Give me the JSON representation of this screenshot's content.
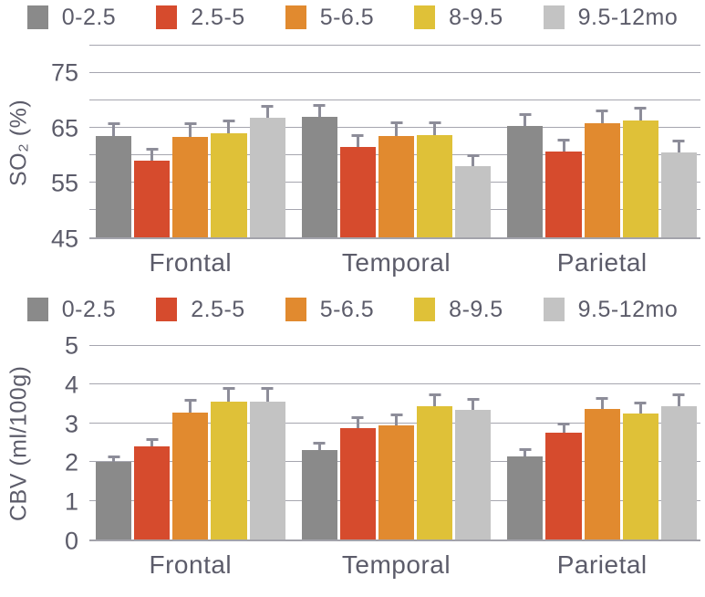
{
  "colors": {
    "series_0_2_5": "#8a8a8a",
    "series_2_5_5": "#d64b2d",
    "series_5_6_5": "#e18a2f",
    "series_8_9_5": "#dfc138",
    "series_9_5_12": "#c3c3c3",
    "text": "#5c5c6a",
    "gridline": "#a6a6af",
    "error_bar": "#8d8d99",
    "background": "#ffffff"
  },
  "chart_data": [
    {
      "type": "bar",
      "title": "",
      "ylabel": "SO₂ (%)",
      "xlabel": "",
      "ylim": [
        45,
        80
      ],
      "gridline_step": 5,
      "grid": true,
      "legend_position": "top",
      "yticks": [
        45,
        55,
        65,
        75
      ],
      "categories": [
        "Frontal",
        "Temporal",
        "Parietal"
      ],
      "legend": [
        {
          "label": "0-2.5",
          "color": "#8a8a8a"
        },
        {
          "label": "2.5-5",
          "color": "#d64b2d"
        },
        {
          "label": "5-6.5",
          "color": "#e18a2f"
        },
        {
          "label": "8-9.5",
          "color": "#dfc138"
        },
        {
          "label": "9.5-12mo",
          "color": "#c3c3c3"
        }
      ],
      "series": [
        {
          "name": "0-2.5",
          "color": "#8a8a8a",
          "values": [
            63.5,
            67.0,
            65.3
          ],
          "errors": [
            2.5,
            2.4,
            2.4
          ]
        },
        {
          "name": "2.5-5",
          "color": "#d64b2d",
          "values": [
            59.0,
            61.5,
            60.7
          ],
          "errors": [
            2.4,
            2.3,
            2.3
          ]
        },
        {
          "name": "5-6.5",
          "color": "#e18a2f",
          "values": [
            63.4,
            63.5,
            65.8
          ],
          "errors": [
            2.6,
            2.6,
            2.6
          ]
        },
        {
          "name": "8-9.5",
          "color": "#dfc138",
          "values": [
            64.0,
            63.7,
            66.4
          ],
          "errors": [
            2.5,
            2.4,
            2.4
          ]
        },
        {
          "name": "9.5-12mo",
          "color": "#c3c3c3",
          "values": [
            66.8,
            58.0,
            60.5
          ],
          "errors": [
            2.4,
            2.1,
            2.3
          ]
        }
      ]
    },
    {
      "type": "bar",
      "title": "",
      "ylabel": "CBV (ml/100g)",
      "xlabel": "",
      "ylim": [
        0,
        5
      ],
      "gridline_step": 1,
      "grid": true,
      "legend_position": "top",
      "yticks": [
        0,
        1,
        2,
        3,
        4,
        5
      ],
      "categories": [
        "Frontal",
        "Temporal",
        "Parietal"
      ],
      "legend": [
        {
          "label": "0-2.5",
          "color": "#8a8a8a"
        },
        {
          "label": "2.5-5",
          "color": "#d64b2d"
        },
        {
          "label": "5-6.5",
          "color": "#e18a2f"
        },
        {
          "label": "8-9.5",
          "color": "#dfc138"
        },
        {
          "label": "9.5-12mo",
          "color": "#c3c3c3"
        }
      ],
      "series": [
        {
          "name": "0-2.5",
          "color": "#8a8a8a",
          "values": [
            2.0,
            2.3,
            2.15
          ],
          "errors": [
            0.18,
            0.22,
            0.22
          ]
        },
        {
          "name": "2.5-5",
          "color": "#d64b2d",
          "values": [
            2.4,
            2.88,
            2.75
          ],
          "errors": [
            0.22,
            0.3,
            0.28
          ]
        },
        {
          "name": "5-6.5",
          "color": "#e18a2f",
          "values": [
            3.28,
            2.95,
            3.37
          ],
          "errors": [
            0.35,
            0.3,
            0.32
          ]
        },
        {
          "name": "8-9.5",
          "color": "#dfc138",
          "values": [
            3.57,
            3.45,
            3.25
          ],
          "errors": [
            0.37,
            0.32,
            0.31
          ]
        },
        {
          "name": "9.5-12mo",
          "color": "#c3c3c3",
          "values": [
            3.57,
            3.35,
            3.45
          ],
          "errors": [
            0.37,
            0.31,
            0.33
          ]
        }
      ]
    }
  ]
}
